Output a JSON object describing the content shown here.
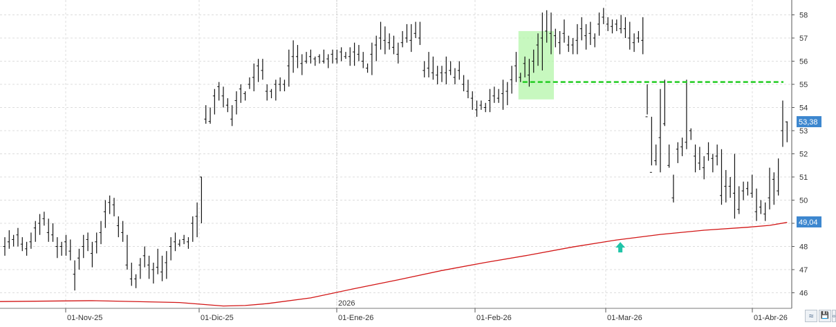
{
  "chart_data": {
    "type": "ohlc",
    "title": "",
    "xlabel": "",
    "ylabel": "",
    "ylim": [
      45.4,
      58.4
    ],
    "y_ticks": [
      46,
      47,
      48,
      49,
      50,
      51,
      52,
      53,
      54,
      55,
      56,
      57,
      58
    ],
    "y_axis_side": "right",
    "grid": "dashed",
    "x_tick_labels": [
      "01-Nov-25",
      "01-Dic-25",
      "01-Ene-26",
      "01-Feb-26",
      "01-Mar-26",
      "01-Abr-26"
    ],
    "year_label": "2026",
    "last_price_label": "53,38",
    "last_price": 53.38,
    "ma_value_label": "49,04",
    "ma_value": 49.04,
    "resistance_level": 55.1,
    "highlight_zone": {
      "y_low": 54.35,
      "y_high": 57.3,
      "start_bar": 118,
      "end_bar": 125
    },
    "up_arrow": {
      "bar": 141,
      "value": 47.95
    },
    "series": [
      {
        "kind": "ohlc",
        "bars": [
          [
            0,
            48.4,
            47.6,
            48.0
          ],
          [
            1,
            48.7,
            47.9,
            48.2
          ],
          [
            2,
            48.5,
            48.0,
            48.3
          ],
          [
            3,
            48.8,
            48.0,
            48.5
          ],
          [
            4,
            48.4,
            47.8,
            48.1
          ],
          [
            5,
            48.2,
            47.6,
            47.9
          ],
          [
            6,
            48.6,
            47.9,
            48.2
          ],
          [
            7,
            49.1,
            48.2,
            48.8
          ],
          [
            8,
            49.4,
            48.5,
            49.0
          ],
          [
            9,
            49.5,
            48.9,
            49.2
          ],
          [
            10,
            49.2,
            48.2,
            48.6
          ],
          [
            11,
            49.0,
            48.2,
            48.5
          ],
          [
            12,
            48.4,
            47.5,
            48.0
          ],
          [
            13,
            48.2,
            47.6,
            48.0
          ],
          [
            14,
            48.5,
            47.6,
            48.2
          ],
          [
            15,
            48.3,
            47.4,
            47.8
          ],
          [
            16,
            47.4,
            46.1,
            46.8
          ],
          [
            17,
            47.9,
            47.0,
            47.5
          ],
          [
            18,
            48.5,
            47.5,
            48.0
          ],
          [
            19,
            48.6,
            47.8,
            48.3
          ],
          [
            20,
            48.2,
            47.1,
            47.7
          ],
          [
            21,
            48.6,
            47.7,
            48.2
          ],
          [
            22,
            49.1,
            48.1,
            48.6
          ],
          [
            23,
            50.0,
            48.8,
            49.5
          ],
          [
            24,
            50.2,
            49.4,
            49.9
          ],
          [
            25,
            50.1,
            49.3,
            49.8
          ],
          [
            26,
            49.3,
            48.4,
            48.9
          ],
          [
            27,
            49.1,
            48.2,
            48.6
          ],
          [
            28,
            48.5,
            47.0,
            47.2
          ],
          [
            29,
            47.3,
            46.3,
            46.6
          ],
          [
            30,
            46.8,
            46.2,
            46.6
          ],
          [
            31,
            47.5,
            46.6,
            47.2
          ],
          [
            32,
            48.0,
            47.1,
            47.6
          ],
          [
            33,
            47.6,
            46.6,
            47.2
          ],
          [
            34,
            47.3,
            46.4,
            47.0
          ],
          [
            35,
            47.9,
            46.8,
            47.1
          ],
          [
            36,
            47.6,
            46.5,
            46.9
          ],
          [
            37,
            47.8,
            46.6,
            47.3
          ],
          [
            38,
            48.4,
            47.4,
            48.0
          ],
          [
            39,
            48.6,
            47.8,
            48.2
          ],
          [
            40,
            48.3,
            48.0,
            48.1
          ],
          [
            41,
            48.5,
            48.1,
            48.3
          ],
          [
            42,
            48.4,
            47.9,
            48.2
          ],
          [
            43,
            49.3,
            48.2,
            49.0
          ],
          [
            44,
            49.9,
            48.4,
            49.3
          ],
          [
            45,
            51.0,
            49.0,
            51.0
          ],
          [
            46,
            54.1,
            53.3,
            53.5
          ],
          [
            47,
            54.0,
            53.3,
            53.4
          ],
          [
            48,
            54.8,
            53.7,
            54.5
          ],
          [
            49,
            55.1,
            54.3,
            54.9
          ],
          [
            50,
            54.9,
            54.0,
            54.5
          ],
          [
            51,
            54.4,
            53.8,
            54.1
          ],
          [
            52,
            54.1,
            53.2,
            53.5
          ],
          [
            53,
            54.7,
            53.7,
            54.3
          ],
          [
            54,
            55.0,
            54.2,
            54.8
          ],
          [
            55,
            54.7,
            54.3,
            54.6
          ],
          [
            56,
            55.3,
            54.8,
            55.0
          ],
          [
            57,
            55.9,
            54.7,
            55.3
          ],
          [
            58,
            56.1,
            55.1,
            55.8
          ],
          [
            59,
            56.1,
            55.2,
            55.6
          ],
          [
            60,
            55.0,
            54.3,
            54.7
          ],
          [
            61,
            54.8,
            54.4,
            54.7
          ],
          [
            62,
            55.2,
            54.3,
            55.0
          ],
          [
            63,
            55.3,
            54.7,
            55.0
          ],
          [
            64,
            55.2,
            54.7,
            55.0
          ],
          [
            65,
            56.5,
            54.9,
            55.8
          ],
          [
            66,
            56.9,
            55.5,
            56.2
          ],
          [
            67,
            56.7,
            55.7,
            56.2
          ],
          [
            68,
            56.3,
            55.4,
            55.9
          ],
          [
            69,
            56.4,
            55.9,
            56.0
          ],
          [
            70,
            56.5,
            55.9,
            56.2
          ],
          [
            71,
            56.2,
            55.8,
            56.1
          ],
          [
            72,
            56.3,
            55.9,
            56.2
          ],
          [
            73,
            56.5,
            55.9,
            56.0
          ],
          [
            74,
            56.3,
            55.7,
            56.1
          ],
          [
            75,
            56.5,
            55.9,
            56.3
          ],
          [
            76,
            56.5,
            55.9,
            56.1
          ],
          [
            77,
            56.6,
            56.0,
            56.4
          ],
          [
            78,
            56.4,
            56.1,
            56.2
          ],
          [
            79,
            56.6,
            55.8,
            56.2
          ],
          [
            80,
            56.8,
            55.8,
            56.4
          ],
          [
            81,
            56.7,
            56.0,
            56.3
          ],
          [
            82,
            56.4,
            55.7,
            56.0
          ],
          [
            83,
            55.9,
            55.5,
            55.7
          ],
          [
            84,
            56.8,
            55.4,
            56.3
          ],
          [
            85,
            57.1,
            56.0,
            56.7
          ],
          [
            86,
            57.7,
            56.5,
            57.0
          ],
          [
            87,
            57.5,
            56.3,
            56.9
          ],
          [
            88,
            57.2,
            56.5,
            56.8
          ],
          [
            89,
            57.1,
            56.3,
            56.6
          ],
          [
            90,
            56.8,
            55.9,
            56.3
          ],
          [
            91,
            57.3,
            56.6,
            56.8
          ],
          [
            92,
            57.6,
            56.8,
            57.0
          ],
          [
            93,
            57.6,
            56.4,
            56.9
          ],
          [
            94,
            57.7,
            57.0,
            57.2
          ],
          [
            95,
            57.7,
            56.7,
            57.0
          ],
          [
            96,
            56.0,
            55.3,
            55.6
          ],
          [
            97,
            56.4,
            55.3,
            55.7
          ],
          [
            98,
            56.2,
            55.2,
            55.5
          ],
          [
            99,
            55.8,
            55.0,
            55.4
          ],
          [
            100,
            55.8,
            55.1,
            55.5
          ],
          [
            101,
            56.2,
            55.0,
            55.5
          ],
          [
            102,
            56.0,
            55.4,
            55.6
          ],
          [
            103,
            55.7,
            55.0,
            55.3
          ],
          [
            104,
            56.0,
            55.2,
            55.6
          ],
          [
            105,
            55.4,
            54.7,
            55.0
          ],
          [
            106,
            55.2,
            54.4,
            54.7
          ],
          [
            107,
            54.7,
            53.9,
            54.4
          ],
          [
            108,
            54.3,
            53.6,
            53.9
          ],
          [
            109,
            54.3,
            53.9,
            54.1
          ],
          [
            110,
            54.2,
            53.8,
            54.0
          ],
          [
            111,
            54.8,
            53.8,
            54.3
          ],
          [
            112,
            54.9,
            54.2,
            54.5
          ],
          [
            113,
            54.8,
            54.2,
            54.4
          ],
          [
            114,
            55.2,
            53.9,
            54.6
          ],
          [
            115,
            55.1,
            54.1,
            54.7
          ],
          [
            116,
            55.8,
            54.6,
            55.2
          ],
          [
            117,
            56.4,
            55.1,
            55.8
          ],
          [
            118,
            55.5,
            55.1,
            55.3
          ],
          [
            119,
            56.2,
            55.3,
            55.9
          ],
          [
            120,
            56.1,
            54.9,
            55.4
          ],
          [
            121,
            56.5,
            55.5,
            56.0
          ],
          [
            122,
            57.2,
            55.8,
            56.7
          ],
          [
            123,
            58.1,
            55.6,
            57.0
          ],
          [
            124,
            58.2,
            56.8,
            57.3
          ],
          [
            125,
            58.1,
            56.3,
            57.2
          ],
          [
            126,
            57.4,
            56.6,
            57.1
          ],
          [
            127,
            57.3,
            56.3,
            56.8
          ],
          [
            128,
            57.8,
            56.8,
            57.2
          ],
          [
            129,
            57.1,
            56.4,
            56.7
          ],
          [
            130,
            57.0,
            56.3,
            56.7
          ],
          [
            131,
            57.6,
            56.3,
            56.9
          ],
          [
            132,
            57.9,
            56.9,
            57.4
          ],
          [
            133,
            57.6,
            56.5,
            57.1
          ],
          [
            134,
            57.7,
            56.7,
            57.2
          ],
          [
            135,
            57.2,
            56.6,
            57.0
          ],
          [
            136,
            58.1,
            57.1,
            57.6
          ],
          [
            137,
            58.3,
            57.6,
            57.9
          ],
          [
            138,
            57.9,
            57.3,
            57.6
          ],
          [
            139,
            57.8,
            57.2,
            57.5
          ],
          [
            140,
            57.8,
            57.3,
            57.6
          ],
          [
            141,
            58.0,
            57.2,
            57.4
          ],
          [
            142,
            57.9,
            57.0,
            57.4
          ],
          [
            143,
            57.7,
            56.5,
            57.0
          ],
          [
            144,
            57.2,
            56.4,
            56.8
          ],
          [
            145,
            57.3,
            56.8,
            57.0
          ],
          [
            146,
            57.9,
            56.3,
            56.9
          ],
          [
            147,
            55.0,
            53.7,
            53.6
          ],
          [
            148,
            53.6,
            51.5,
            51.2
          ],
          [
            149,
            52.4,
            51.5,
            51.7
          ],
          [
            150,
            54.8,
            51.2,
            52.7
          ],
          [
            151,
            55.2,
            53.2,
            53.3
          ],
          [
            152,
            52.4,
            51.4,
            51.5
          ],
          [
            153,
            51.1,
            49.9,
            50.1
          ],
          [
            154,
            52.5,
            51.6,
            52.2
          ],
          [
            155,
            52.7,
            51.9,
            52.3
          ],
          [
            156,
            55.2,
            52.2,
            52.5
          ],
          [
            157,
            53.1,
            52.6,
            53.0
          ],
          [
            158,
            52.4,
            51.2,
            51.9
          ],
          [
            159,
            52.3,
            51.3,
            51.6
          ],
          [
            160,
            51.9,
            50.9,
            51.4
          ],
          [
            161,
            52.5,
            51.7,
            52.0
          ],
          [
            162,
            52.0,
            51.2,
            51.8
          ],
          [
            163,
            52.4,
            51.5,
            51.9
          ],
          [
            164,
            52.2,
            49.8,
            50.2
          ],
          [
            165,
            51.3,
            49.9,
            50.6
          ],
          [
            166,
            51.0,
            50.1,
            50.6
          ],
          [
            167,
            52.0,
            49.2,
            50.3
          ],
          [
            168,
            50.6,
            49.4,
            49.6
          ],
          [
            169,
            50.8,
            50.0,
            50.4
          ],
          [
            170,
            50.8,
            50.2,
            50.5
          ],
          [
            171,
            51.1,
            50.1,
            50.3
          ],
          [
            172,
            50.5,
            49.1,
            49.5
          ],
          [
            173,
            50.0,
            49.4,
            49.7
          ],
          [
            174,
            49.9,
            49.1,
            49.4
          ],
          [
            175,
            51.4,
            49.6,
            50.1
          ],
          [
            176,
            51.2,
            49.8,
            50.9
          ],
          [
            177,
            51.8,
            50.2,
            50.4
          ],
          [
            178,
            54.3,
            52.3,
            53.0
          ],
          [
            179,
            53.4,
            52.5,
            53.38
          ]
        ]
      },
      {
        "kind": "moving_average",
        "points": [
          [
            -3,
            45.62
          ],
          [
            20,
            45.66
          ],
          [
            40,
            45.58
          ],
          [
            50,
            45.43
          ],
          [
            55,
            45.45
          ],
          [
            60,
            45.53
          ],
          [
            70,
            45.78
          ],
          [
            80,
            46.18
          ],
          [
            90,
            46.56
          ],
          [
            100,
            46.96
          ],
          [
            110,
            47.31
          ],
          [
            120,
            47.63
          ],
          [
            130,
            47.98
          ],
          [
            140,
            48.28
          ],
          [
            150,
            48.52
          ],
          [
            160,
            48.7
          ],
          [
            170,
            48.83
          ],
          [
            175,
            48.91
          ],
          [
            179,
            49.04
          ]
        ]
      }
    ]
  },
  "toolbar": {
    "collapse_label": "≈",
    "save_label": "💾",
    "extra_label": "▫"
  }
}
